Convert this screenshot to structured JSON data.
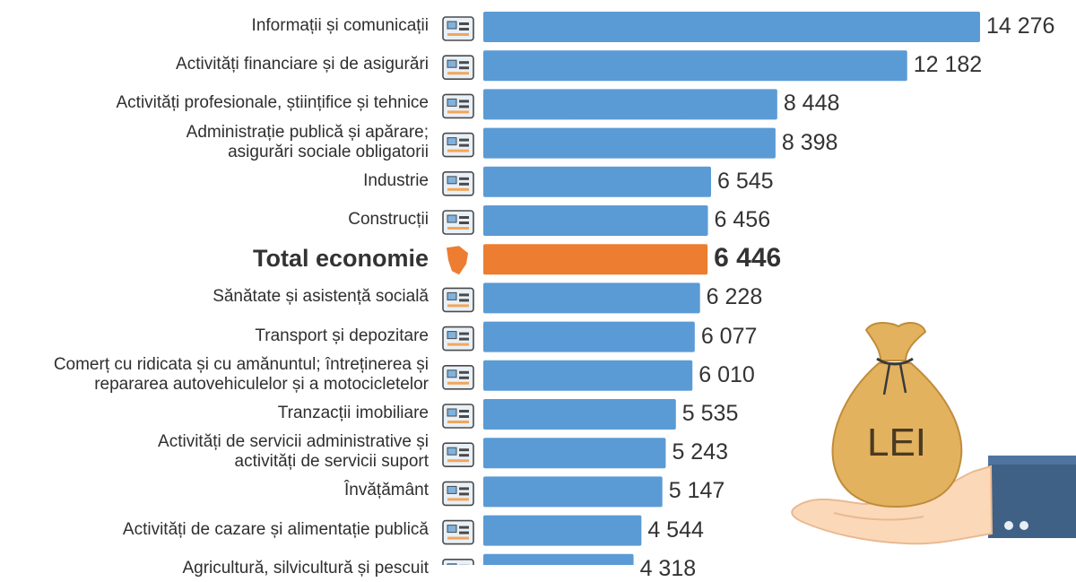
{
  "chart_data": {
    "type": "bar",
    "orientation": "horizontal",
    "title": "",
    "xlabel": "",
    "ylabel": "",
    "xlim": [
      0,
      14276
    ],
    "categories": [
      "Informații și comunicații",
      "Activități financiare și de asigurări",
      "Activități profesionale, științifice și tehnice",
      "Administrație publică și apărare;\nasigurări sociale obligatorii",
      "Industrie",
      "Construcții",
      "Total economie",
      "Sănătate și asistență socială",
      "Transport și depozitare",
      "Comerț cu ridicata și cu amănuntul; întreținerea și\nrepararea autovehiculelor și a motocicletelor",
      "Tranzacții imobiliare",
      "Activități de servicii administrative și\nactivități de servicii suport",
      "Învățământ",
      "Activități de cazare și alimentație publică",
      "Agricultură, silvicultură și pescuit"
    ],
    "values": [
      14276,
      12182,
      8448,
      8398,
      6545,
      6456,
      6446,
      6228,
      6077,
      6010,
      5535,
      5243,
      5147,
      4544,
      4318
    ],
    "value_labels": [
      "14 276",
      "12 182",
      "8 448",
      "8 398",
      "6 545",
      "6 456",
      "6 446",
      "6 228",
      "6 077",
      "6 010",
      "5 535",
      "5 243",
      "5 147",
      "4 544",
      "4 318"
    ],
    "highlight_index": 6,
    "icons": [
      "satellite-computer-icon",
      "finance-report-icon",
      "laboratory-icon",
      "public-administration-building-icon",
      "factory-icon",
      "construction-crane-icon",
      "moldova-map-icon",
      "healthcare-icon",
      "transport-warehouse-icon",
      "trade-scale-car-icon",
      "real-estate-sale-icon",
      "office-binders-icon",
      "education-globe-books-icon",
      "dining-plate-icon",
      "agriculture-wheat-icon"
    ]
  },
  "illustration": {
    "bag_text": "LEI"
  },
  "colors": {
    "bar": "#5b9bd5",
    "highlight": "#ed7d31",
    "bag": "#e3b25f",
    "hand": "#fbd9b8",
    "sleeve": "#3f6185"
  }
}
